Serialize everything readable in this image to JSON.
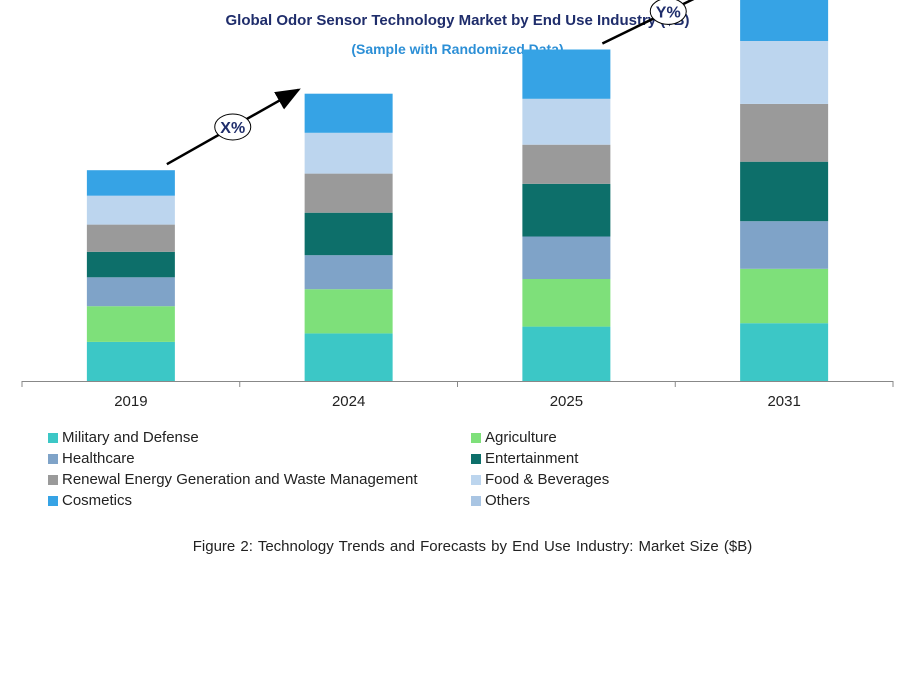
{
  "chart_data": {
    "type": "bar",
    "stacked": true,
    "title": "Global Odor Sensor Technology Market by End Use Industry ($B)",
    "subtitle": "(Sample with Randomized Data)",
    "categories": [
      "2019",
      "2024",
      "2025",
      "2031"
    ],
    "series": [
      {
        "name": "Military and Defense",
        "color": "#3cc7c6",
        "values": [
          23,
          28,
          32,
          34
        ]
      },
      {
        "name": "Agriculture",
        "color": "#7ee07a",
        "values": [
          21,
          26,
          28,
          32
        ]
      },
      {
        "name": "Healthcare",
        "color": "#7fa3c8",
        "values": [
          17,
          20,
          25,
          28
        ]
      },
      {
        "name": "Entertainment",
        "color": "#0d6f6a",
        "values": [
          15,
          25,
          31,
          35
        ]
      },
      {
        "name": "Renewal Energy Generation and Waste Management",
        "color": "#9a9a9a",
        "values": [
          16,
          23,
          23,
          34
        ]
      },
      {
        "name": "Food & Beverages",
        "color": "#bcd5ee",
        "values": [
          17,
          24,
          27,
          37
        ]
      },
      {
        "name": "Cosmetics",
        "color": "#36a3e5",
        "values": [
          15,
          23,
          29,
          34
        ]
      },
      {
        "name": "Others",
        "color": "#a9c5e3",
        "values": [
          0,
          0,
          0,
          0
        ]
      }
    ],
    "annotations": [
      {
        "label": "X%",
        "from": "2019",
        "to": "2024"
      },
      {
        "label": "Y%",
        "from": "2025",
        "to": "2031"
      }
    ],
    "grid": false,
    "legend_position": "bottom"
  },
  "caption": "Figure 2: Technology Trends and Forecasts by End Use Industry:  Market Size ($B)",
  "legend": {
    "items": [
      {
        "label": "Military and Defense",
        "color": "#3cc7c6"
      },
      {
        "label": "Agriculture",
        "color": "#7ee07a"
      },
      {
        "label": "Healthcare",
        "color": "#7fa3c8"
      },
      {
        "label": "Entertainment",
        "color": "#0d6f6a"
      },
      {
        "label": "Renewal Energy Generation and Waste Management",
        "color": "#9a9a9a"
      },
      {
        "label": "Food & Beverages",
        "color": "#bcd5ee"
      },
      {
        "label": "Cosmetics",
        "color": "#36a3e5"
      },
      {
        "label": "Others",
        "color": "#a9c5e3"
      }
    ]
  }
}
